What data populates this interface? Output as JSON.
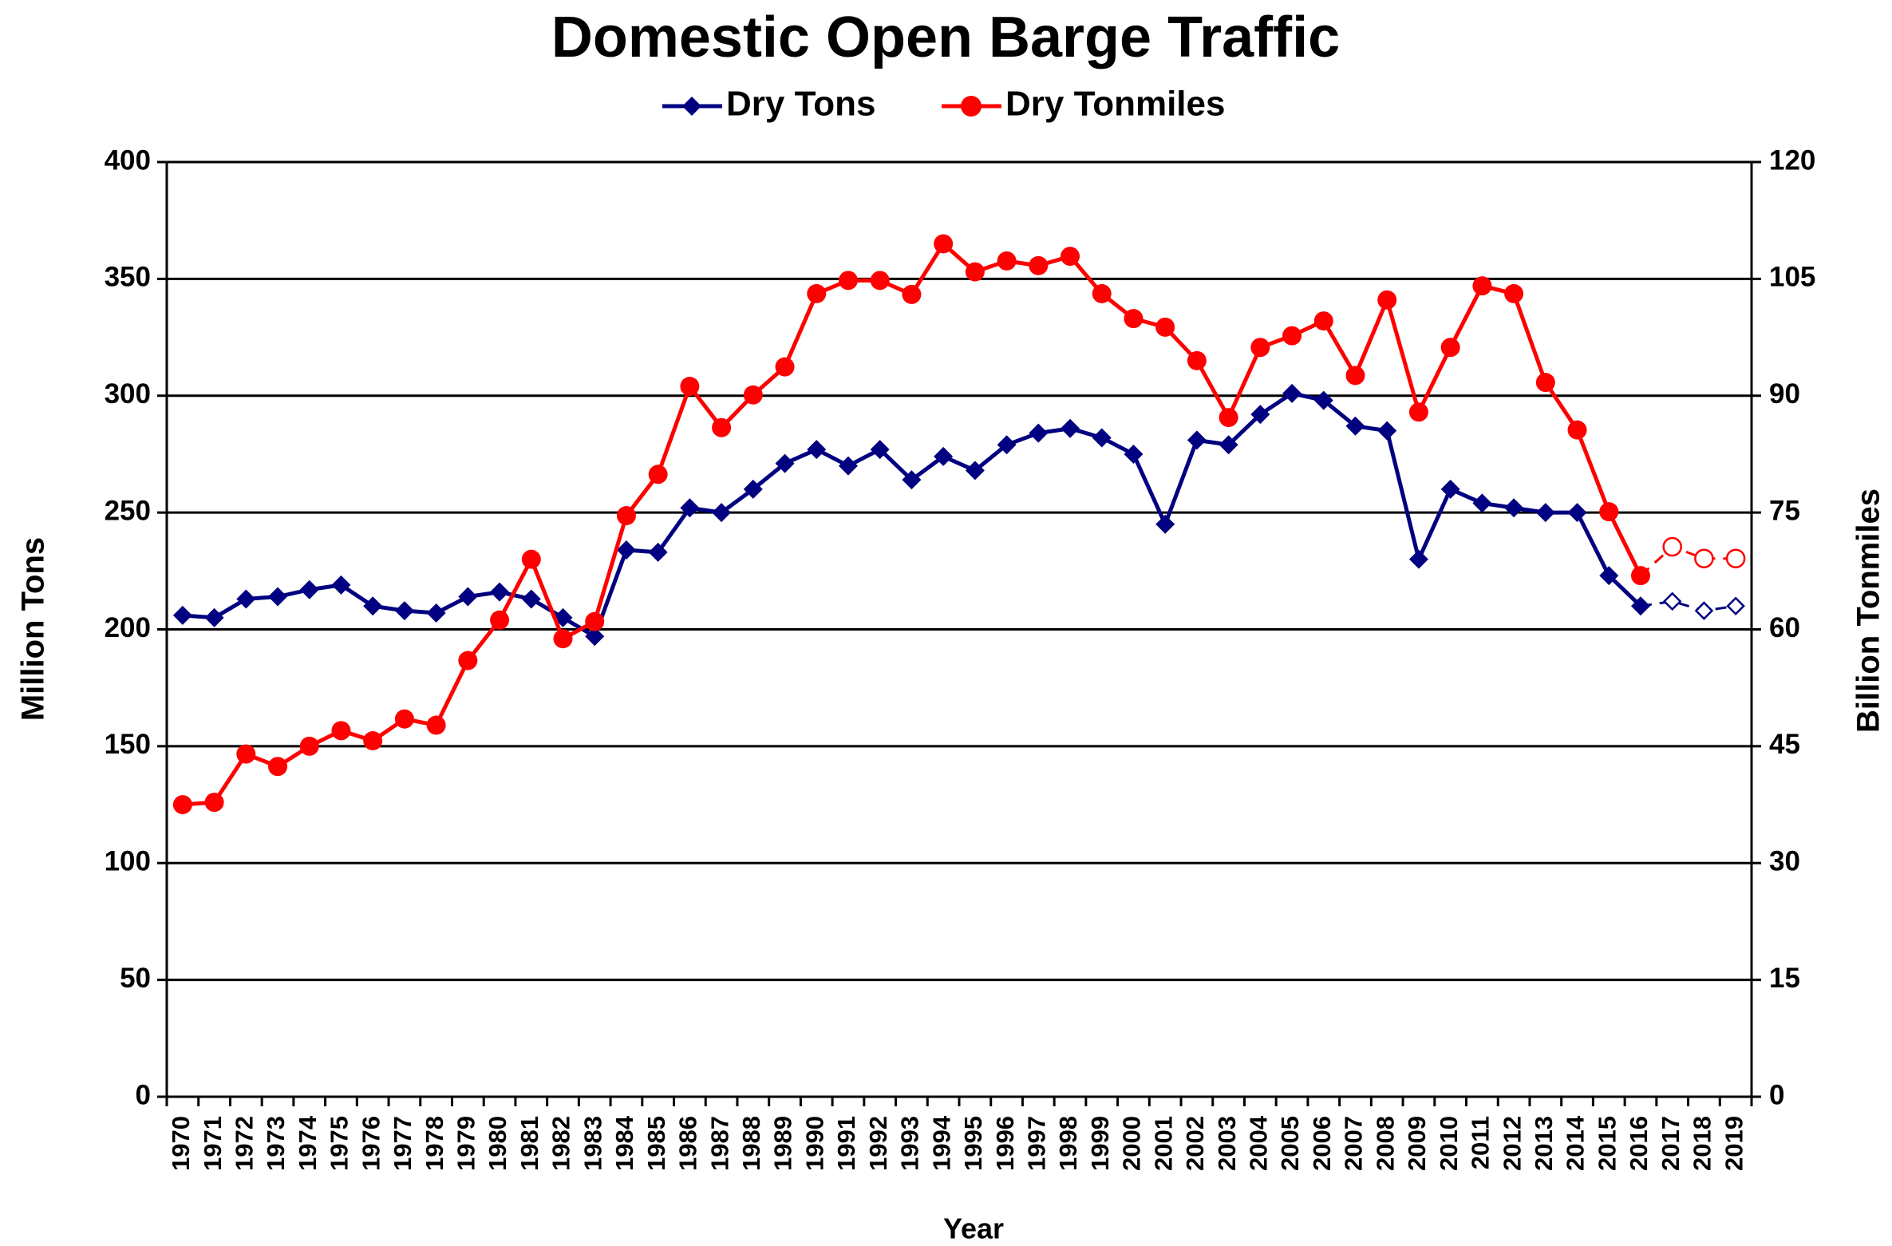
{
  "chart_data": {
    "type": "line",
    "title": "Domestic Open Barge Traffic",
    "x_label": "Year",
    "y_label": "Million Tons",
    "y2_label": "Billion Tonmiles",
    "categories": [
      "1970",
      "1971",
      "1972",
      "1973",
      "1974",
      "1975",
      "1976",
      "1977",
      "1978",
      "1979",
      "1980",
      "1981",
      "1982",
      "1983",
      "1984",
      "1985",
      "1986",
      "1987",
      "1988",
      "1989",
      "1990",
      "1991",
      "1992",
      "1993",
      "1994",
      "1995",
      "1996",
      "1997",
      "1998",
      "1999",
      "2000",
      "2001",
      "2002",
      "2003",
      "2004",
      "2005",
      "2006",
      "2007",
      "2008",
      "2009",
      "2010",
      "2011",
      "2012",
      "2013",
      "2014",
      "2015",
      "2016",
      "2017",
      "2018",
      "2019"
    ],
    "projection_start": "2017",
    "series": [
      {
        "name": "Dry Tons",
        "color": "#000080",
        "marker": "diamond",
        "axis": "y",
        "values": [
          206,
          205,
          213,
          214,
          217,
          219,
          210,
          208,
          207,
          214,
          216,
          213,
          205,
          197,
          234,
          233,
          252,
          250,
          260,
          271,
          277,
          270,
          277,
          264,
          274,
          268,
          279,
          284,
          286,
          282,
          275,
          245,
          281,
          279,
          292,
          301,
          298,
          287,
          285,
          230,
          260,
          254,
          252,
          250,
          250,
          223,
          210,
          212,
          208,
          210
        ]
      },
      {
        "name": "Dry Tonmiles",
        "color": "#ff0000",
        "marker": "circle",
        "axis": "y2",
        "values": [
          37.5,
          37.8,
          44,
          42.4,
          45,
          47,
          45.7,
          48.5,
          47.7,
          56,
          61.2,
          69,
          58.8,
          61,
          74.6,
          79.9,
          91.2,
          85.9,
          90.1,
          93.7,
          103.1,
          104.8,
          104.8,
          103,
          109.5,
          105.9,
          107.3,
          106.7,
          107.9,
          103.1,
          99.9,
          98.8,
          94.5,
          87.2,
          96.2,
          97.7,
          99.6,
          92.6,
          102.3,
          87.9,
          96.2,
          104.1,
          103.1,
          91.7,
          85.6,
          75.1,
          66.9,
          70.6,
          69.1,
          69.1
        ]
      }
    ],
    "ylim": [
      0,
      400
    ],
    "yticks": [
      0,
      50,
      100,
      150,
      200,
      250,
      300,
      350,
      400
    ],
    "y2lim": [
      0,
      120
    ],
    "y2ticks": [
      0,
      15,
      30,
      45,
      60,
      75,
      90,
      105,
      120
    ],
    "grid": true,
    "legend": "top"
  }
}
